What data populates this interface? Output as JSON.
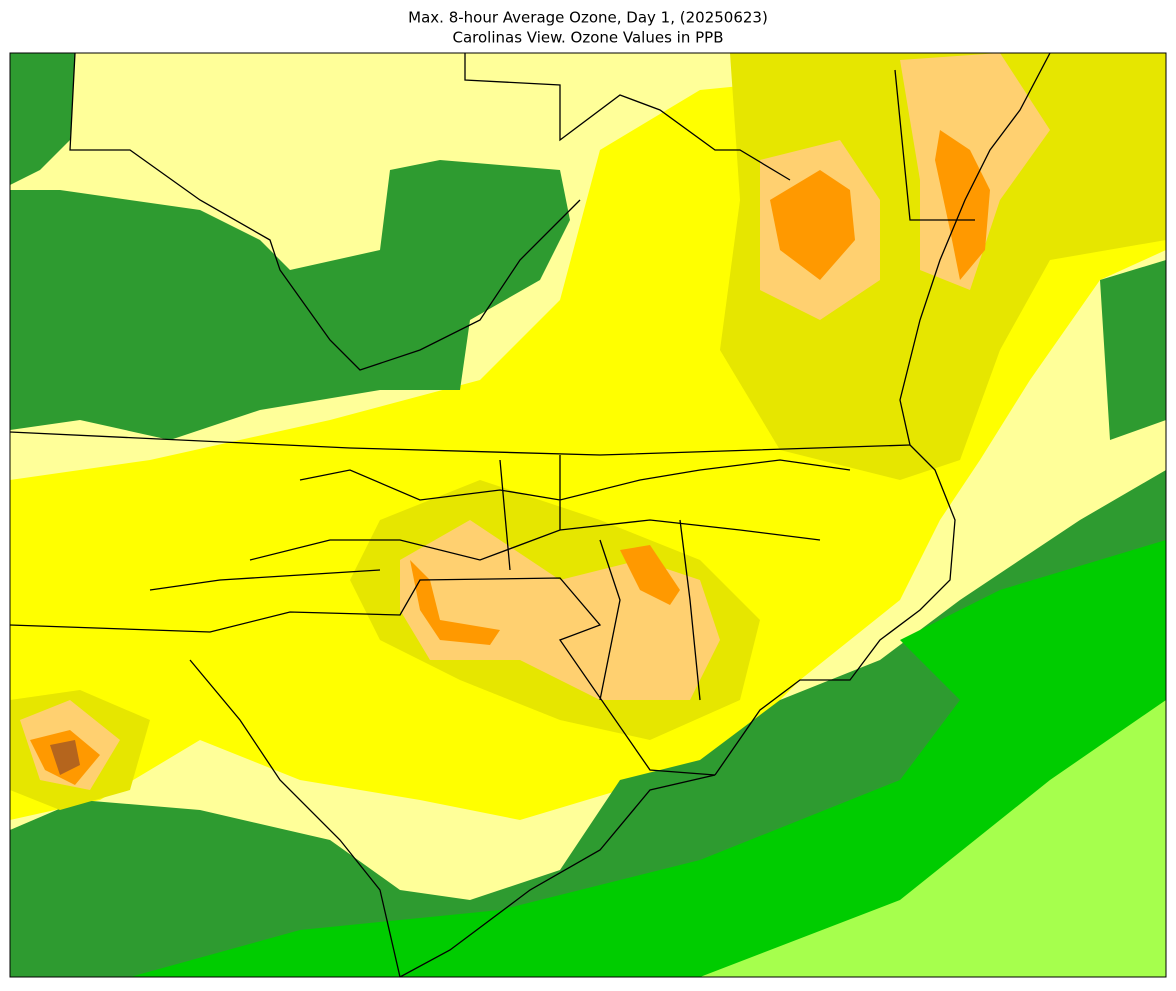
{
  "header": {
    "title": "Max. 8-hour Average Ozone, Day 1, (20250623)",
    "subtitle": "Carolinas View. Ozone Values in PPB"
  }
}
